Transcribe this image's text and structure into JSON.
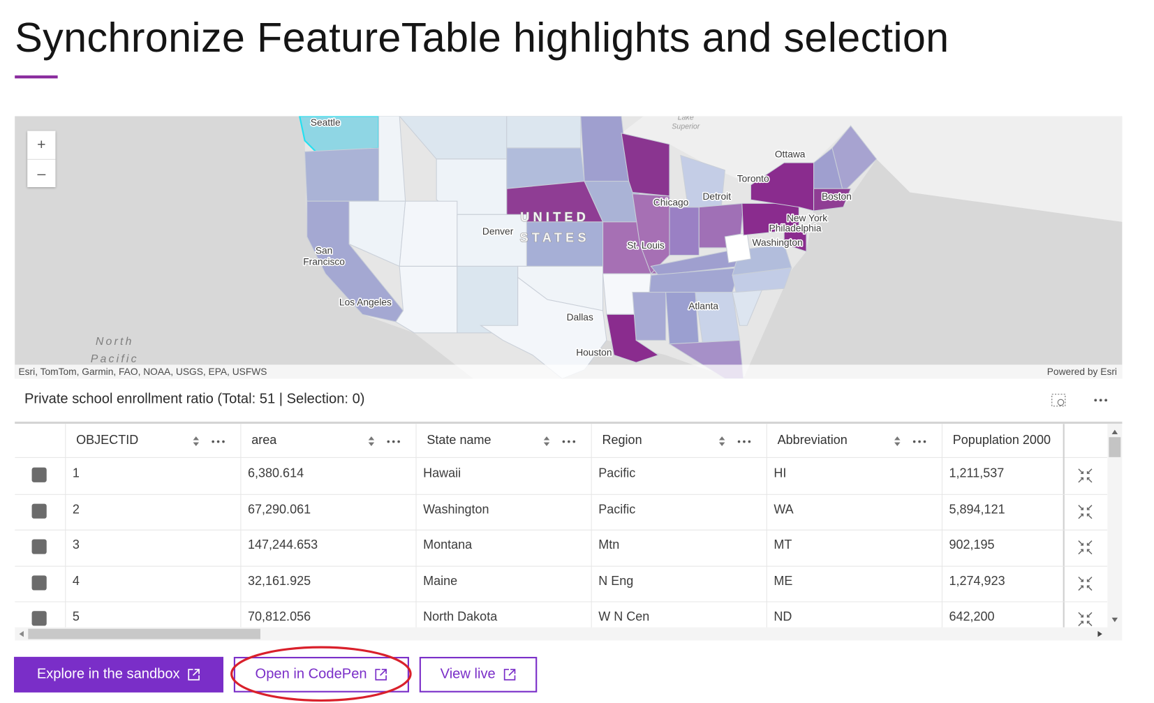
{
  "header": {
    "title": "Synchronize FeatureTable highlights and selection"
  },
  "map": {
    "labels": [
      "Seattle",
      "Ottawa",
      "Toronto",
      "Detroit",
      "Chicago",
      "Boston",
      "New York",
      "Philadelphia",
      "Washington",
      "St. Louis",
      "Denver",
      "San",
      "Francisco",
      "Los Angeles",
      "Atlanta",
      "Dallas",
      "Houston"
    ],
    "country": [
      "UNITED",
      "STATES"
    ],
    "ocean": [
      "North",
      "Pacific"
    ],
    "lake": [
      "Lake",
      "Superior"
    ],
    "zoom_in": "+",
    "zoom_out": "–",
    "attribution": "Esri, TomTom, Garmin, FAO, NOAA, USGS, EPA, USFWS",
    "powered_by": "Powered by Esri"
  },
  "table": {
    "caption": "Private school enrollment ratio (Total: 51 | Selection: 0)",
    "columns": [
      "OBJECTID",
      "area",
      "State name",
      "Region",
      "Abbreviation",
      "Popuplation 2000"
    ],
    "rows": [
      [
        "1",
        "6,380.614",
        "Hawaii",
        "Pacific",
        "HI",
        "1,211,537"
      ],
      [
        "2",
        "67,290.061",
        "Washington",
        "Pacific",
        "WA",
        "5,894,121"
      ],
      [
        "3",
        "147,244.653",
        "Montana",
        "Mtn",
        "MT",
        "902,195"
      ],
      [
        "4",
        "32,161.925",
        "Maine",
        "N Eng",
        "ME",
        "1,274,923"
      ],
      [
        "5",
        "70,812.056",
        "North Dakota",
        "W N Cen",
        "ND",
        "642,200"
      ]
    ]
  },
  "buttons": [
    "Explore in the sandbox",
    "Open in CodePen",
    "View live"
  ]
}
